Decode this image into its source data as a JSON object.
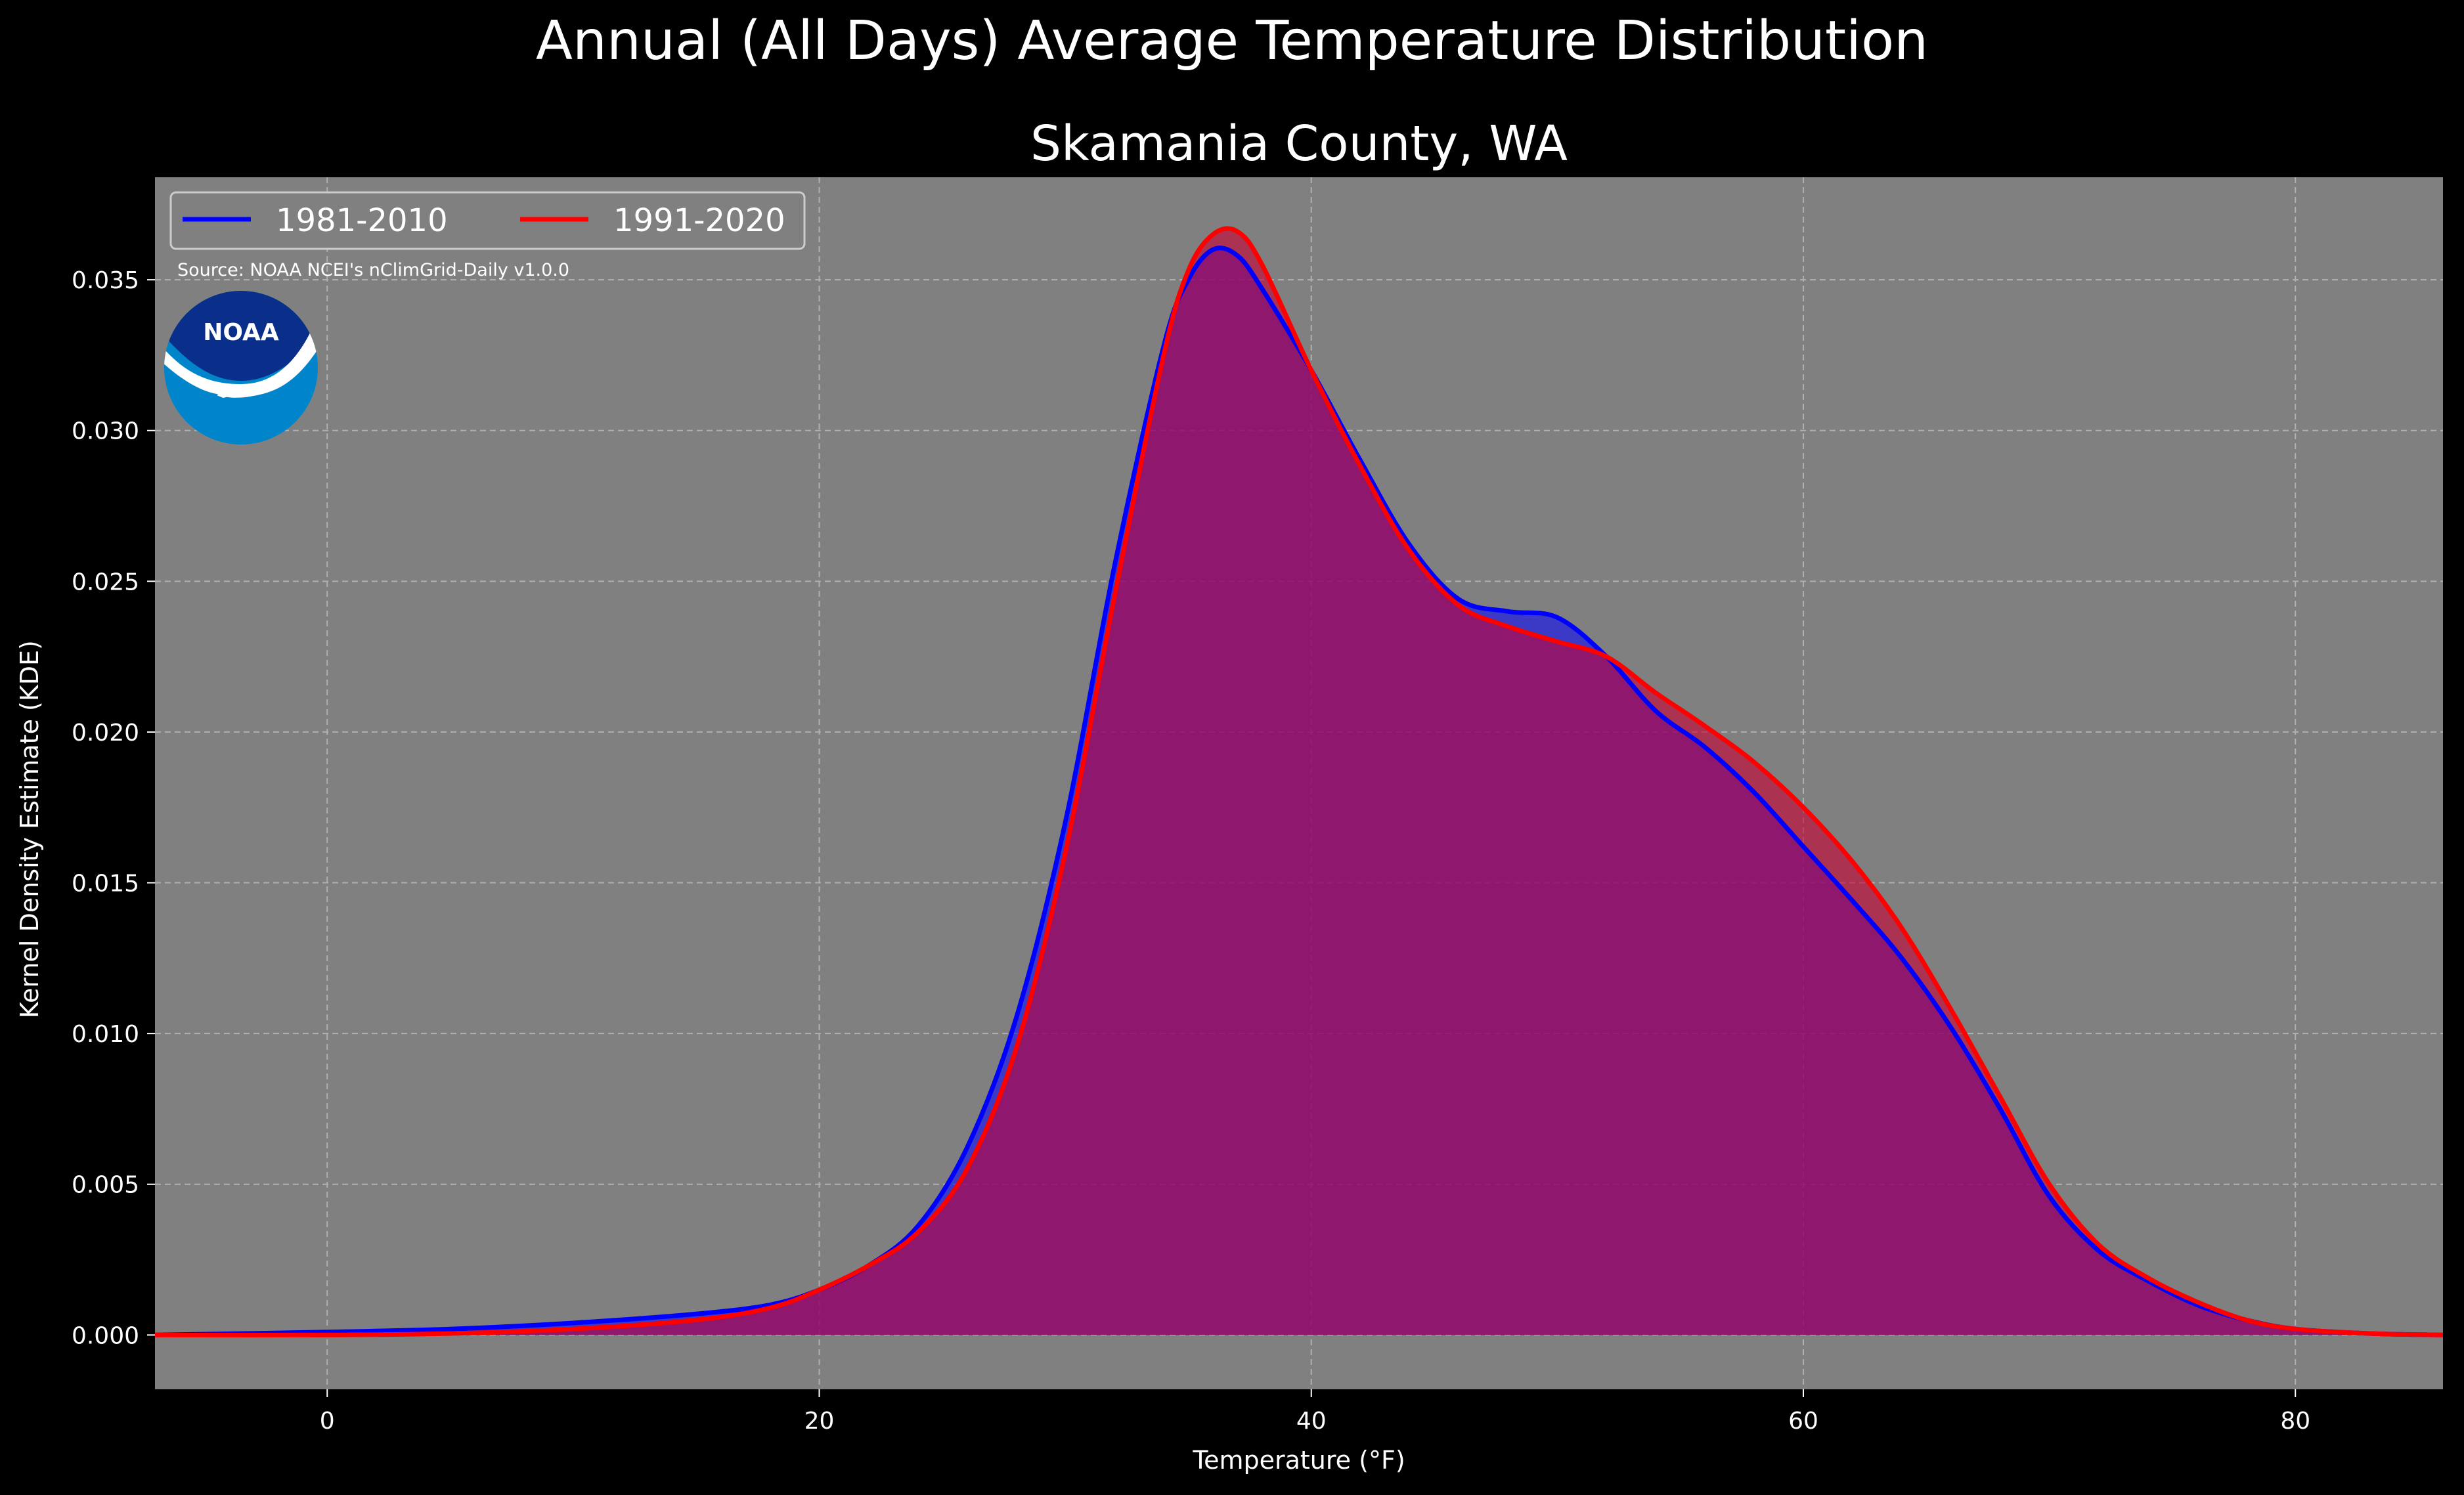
{
  "chart_data": {
    "type": "area",
    "suptitle": "Annual (All Days) Average Temperature Distribution",
    "title": "Skamania County, WA",
    "xlabel": "Temperature (°F)",
    "ylabel": "Kernel Density Estimate (KDE)",
    "source": "Source: NOAA NCEI's nClimGrid-Daily v1.0.0",
    "logo_text": "NOAA",
    "xlim": [
      -7,
      86
    ],
    "ylim": [
      -0.0018,
      0.0384
    ],
    "xticks": [
      0,
      20,
      40,
      60,
      80
    ],
    "xtick_labels": [
      "0",
      "20",
      "40",
      "60",
      "80"
    ],
    "yticks": [
      0.0,
      0.005,
      0.01,
      0.015,
      0.02,
      0.025,
      0.03,
      0.035
    ],
    "ytick_labels": [
      "0.000",
      "0.005",
      "0.010",
      "0.015",
      "0.020",
      "0.025",
      "0.030",
      "0.035"
    ],
    "grid": true,
    "legend": {
      "position": "top-left",
      "columns": 2
    },
    "colors": {
      "background": "#000000",
      "plot_background": "#808080",
      "series_1981": "#0000ff",
      "series_1991": "#ff0000",
      "fill_1981": "#0000ff",
      "fill_1991": "#c80032",
      "grid": "#b0b0b0",
      "logo_top": "#0a2f8a",
      "logo_bottom": "#0085ca"
    },
    "series": [
      {
        "name": "1981-2010",
        "x": [
          -7,
          0,
          5,
          10,
          15,
          18,
          20,
          22,
          24,
          26,
          28,
          30,
          32,
          34,
          35,
          36,
          37,
          38,
          40,
          42,
          44,
          46,
          48,
          50,
          52,
          54,
          56,
          58,
          60,
          62,
          64,
          66,
          68,
          70,
          72,
          74,
          76,
          78,
          80,
          83,
          86
        ],
        "y": [
          0.0,
          0.0001,
          0.0002,
          0.0004,
          0.0007,
          0.001,
          0.0015,
          0.0023,
          0.0036,
          0.0062,
          0.0105,
          0.017,
          0.0255,
          0.0328,
          0.035,
          0.036,
          0.0358,
          0.0347,
          0.032,
          0.029,
          0.0262,
          0.0244,
          0.024,
          0.0238,
          0.0225,
          0.0207,
          0.0195,
          0.018,
          0.0162,
          0.0144,
          0.0125,
          0.0102,
          0.0075,
          0.0046,
          0.0028,
          0.0018,
          0.001,
          0.0005,
          0.0002,
          5e-05,
          0.0
        ]
      },
      {
        "name": "1991-2020",
        "x": [
          -7,
          0,
          5,
          10,
          15,
          18,
          20,
          22,
          24,
          26,
          28,
          30,
          32,
          34,
          35,
          36,
          37,
          38,
          40,
          42,
          44,
          46,
          48,
          50,
          52,
          54,
          56,
          58,
          60,
          62,
          64,
          66,
          68,
          70,
          72,
          74,
          76,
          78,
          80,
          83,
          86
        ],
        "y": [
          0.0,
          0.0,
          5e-05,
          0.0002,
          0.0005,
          0.0009,
          0.0015,
          0.0023,
          0.0034,
          0.0055,
          0.0095,
          0.016,
          0.0245,
          0.0325,
          0.0353,
          0.0365,
          0.0366,
          0.0355,
          0.032,
          0.0288,
          0.026,
          0.0242,
          0.0235,
          0.023,
          0.0225,
          0.0213,
          0.0202,
          0.019,
          0.0175,
          0.0157,
          0.0135,
          0.0108,
          0.0079,
          0.005,
          0.003,
          0.0019,
          0.0011,
          0.0005,
          0.0002,
          5e-05,
          0.0
        ]
      }
    ]
  }
}
